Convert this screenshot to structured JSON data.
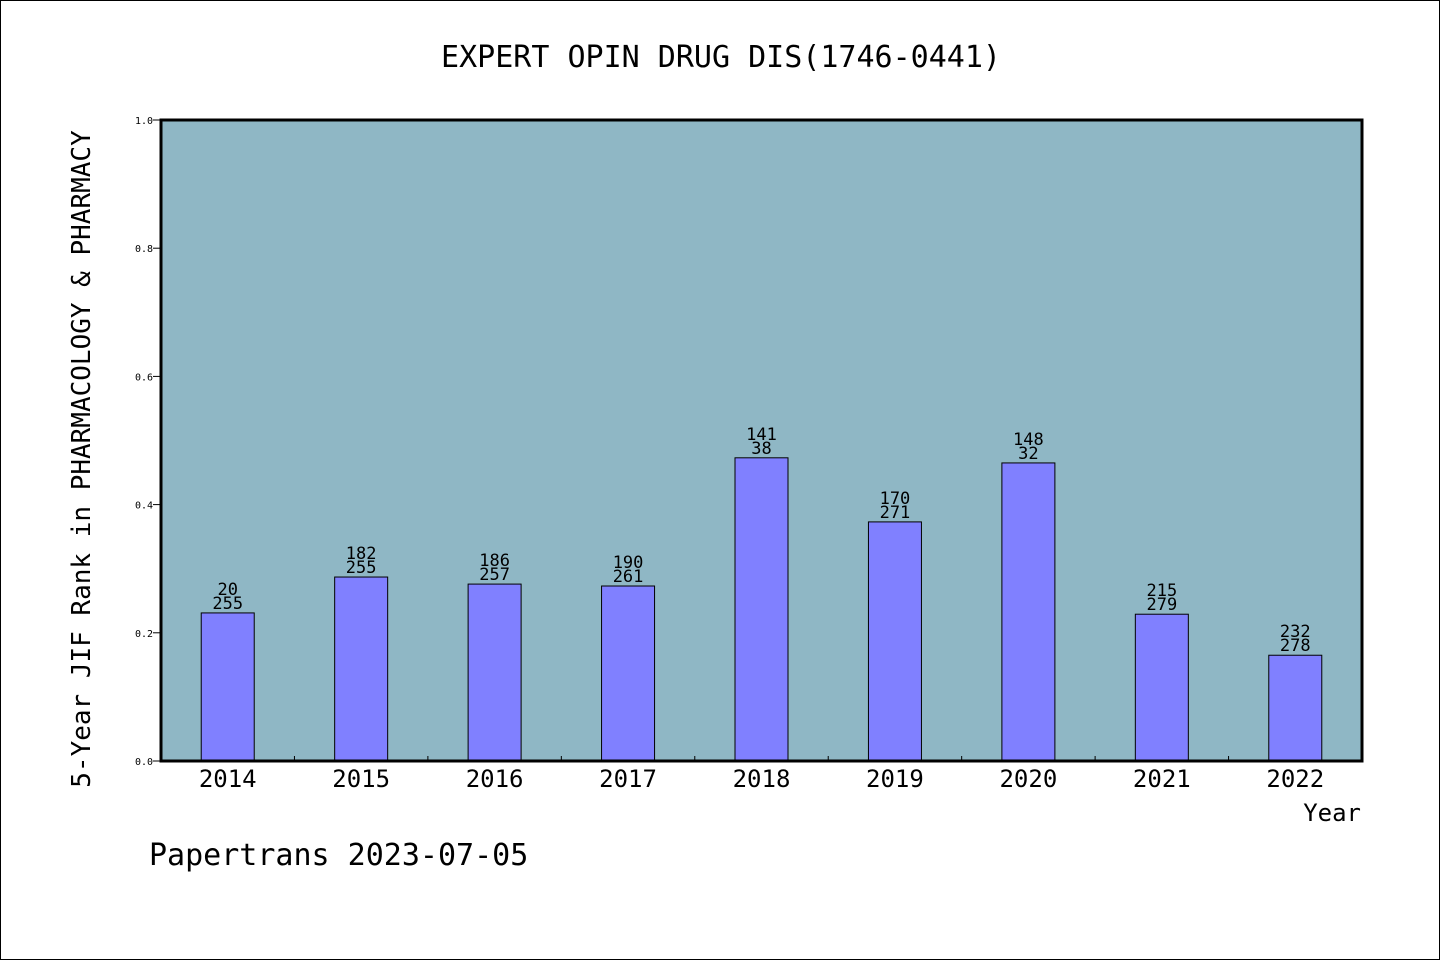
{
  "chart_data": {
    "type": "bar",
    "title": "EXPERT OPIN DRUG DIS(1746-0441)",
    "xlabel": "Year",
    "ylabel": "5-Year JIF Rank in PHARMACOLOGY & PHARMACY",
    "ylim": [
      0,
      1.0
    ],
    "yticks": [
      "0.0",
      "0.2",
      "0.4",
      "0.6",
      "0.8",
      "1.0"
    ],
    "categories": [
      "2014",
      "2015",
      "2016",
      "2017",
      "2018",
      "2019",
      "2020",
      "2021",
      "2022"
    ],
    "values": [
      0.231,
      0.287,
      0.276,
      0.273,
      0.473,
      0.373,
      0.465,
      0.229,
      0.165
    ],
    "labels_top": [
      "20",
      "182",
      "186",
      "190",
      "141",
      "170",
      "148",
      "215",
      "232"
    ],
    "labels_bottom": [
      "255",
      "255",
      "257",
      "261",
      "38",
      "271",
      "32",
      "279",
      "278"
    ],
    "plot_background": "#8fb7c5",
    "bar_color": "#8080ff",
    "grid": false,
    "legend": "none"
  },
  "footer": "Papertrans 2023-07-05"
}
